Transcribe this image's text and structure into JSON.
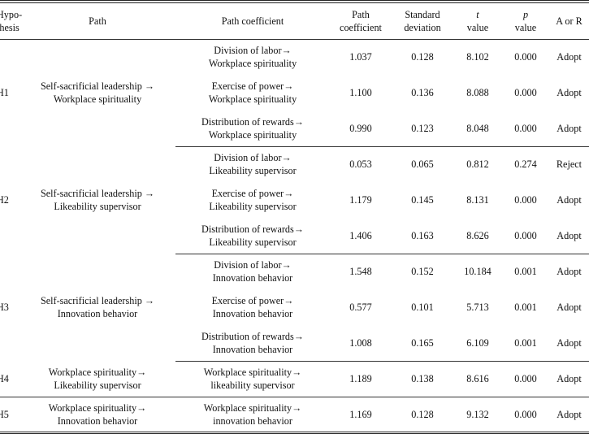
{
  "headers": {
    "hypothesis": [
      "Hypo-",
      "thesis"
    ],
    "path": "Path",
    "path_coef_desc": "Path  coefficient",
    "path_coef": [
      "Path",
      "coefficient"
    ],
    "sd": [
      "Standard",
      "deviation"
    ],
    "t": [
      "t",
      "value"
    ],
    "p": [
      "p",
      "value"
    ],
    "ar": "A  or  R"
  },
  "groups": [
    {
      "hyp": "H1",
      "path": [
        "Self-sacrificial leadership  →",
        "Workplace  spirituality"
      ],
      "rows": [
        {
          "desc": [
            "Division  of  labor→",
            "Workplace  spirituality"
          ],
          "coef": "1.037",
          "sd": "0.128",
          "t": "8.102",
          "p": "0.000",
          "ar": "Adopt"
        },
        {
          "desc": [
            "Exercise  of  power→",
            "Workplace  spirituality"
          ],
          "coef": "1.100",
          "sd": "0.136",
          "t": "8.088",
          "p": "0.000",
          "ar": "Adopt"
        },
        {
          "desc": [
            "Distribution  of  rewards→",
            "Workplace  spirituality"
          ],
          "coef": "0.990",
          "sd": "0.123",
          "t": "8.048",
          "p": "0.000",
          "ar": "Adopt"
        }
      ]
    },
    {
      "hyp": "H2",
      "path": [
        "Self-sacrificial  leadership  →",
        "Likeability  supervisor"
      ],
      "rows": [
        {
          "desc": [
            "Division  of  labor→",
            "Likeability  supervisor"
          ],
          "coef": "0.053",
          "sd": "0.065",
          "t": "0.812",
          "p": "0.274",
          "ar": "Reject"
        },
        {
          "desc": [
            "Exercise  of  power→",
            "Likeability  supervisor"
          ],
          "coef": "1.179",
          "sd": "0.145",
          "t": "8.131",
          "p": "0.000",
          "ar": "Adopt"
        },
        {
          "desc": [
            "Distribution  of  rewards→",
            "Likeability  supervisor"
          ],
          "coef": "1.406",
          "sd": "0.163",
          "t": "8.626",
          "p": "0.000",
          "ar": "Adopt"
        }
      ]
    },
    {
      "hyp": "H3",
      "path": [
        "Self-sacrificial  leadership  →",
        "Innovation  behavior"
      ],
      "rows": [
        {
          "desc": [
            "Division  of  labor→",
            "Innovation  behavior"
          ],
          "coef": "1.548",
          "sd": "0.152",
          "t": "10.184",
          "p": "0.001",
          "ar": "Adopt"
        },
        {
          "desc": [
            "Exercise  of  power→",
            "Innovation  behavior"
          ],
          "coef": "0.577",
          "sd": "0.101",
          "t": "5.713",
          "p": "0.001",
          "ar": "Adopt"
        },
        {
          "desc": [
            "Distribution  of  rewards→",
            "Innovation  behavior"
          ],
          "coef": "1.008",
          "sd": "0.165",
          "t": "6.109",
          "p": "0.001",
          "ar": "Adopt"
        }
      ]
    },
    {
      "hyp": "H4",
      "path": [
        "Workplace  spirituality→",
        "Likeability  supervisor"
      ],
      "rows": [
        {
          "desc": [
            "Workplace  spirituality→",
            "likeability  supervisor"
          ],
          "coef": "1.189",
          "sd": "0.138",
          "t": "8.616",
          "p": "0.000",
          "ar": "Adopt"
        }
      ]
    },
    {
      "hyp": "H5",
      "path": [
        "Workplace  spirituality→",
        "Innovation  behavior"
      ],
      "rows": [
        {
          "desc": [
            "Workplace  spirituality→",
            "innovation  behavior"
          ],
          "coef": "1.169",
          "sd": "0.128",
          "t": "9.132",
          "p": "0.000",
          "ar": "Adopt"
        }
      ]
    }
  ]
}
